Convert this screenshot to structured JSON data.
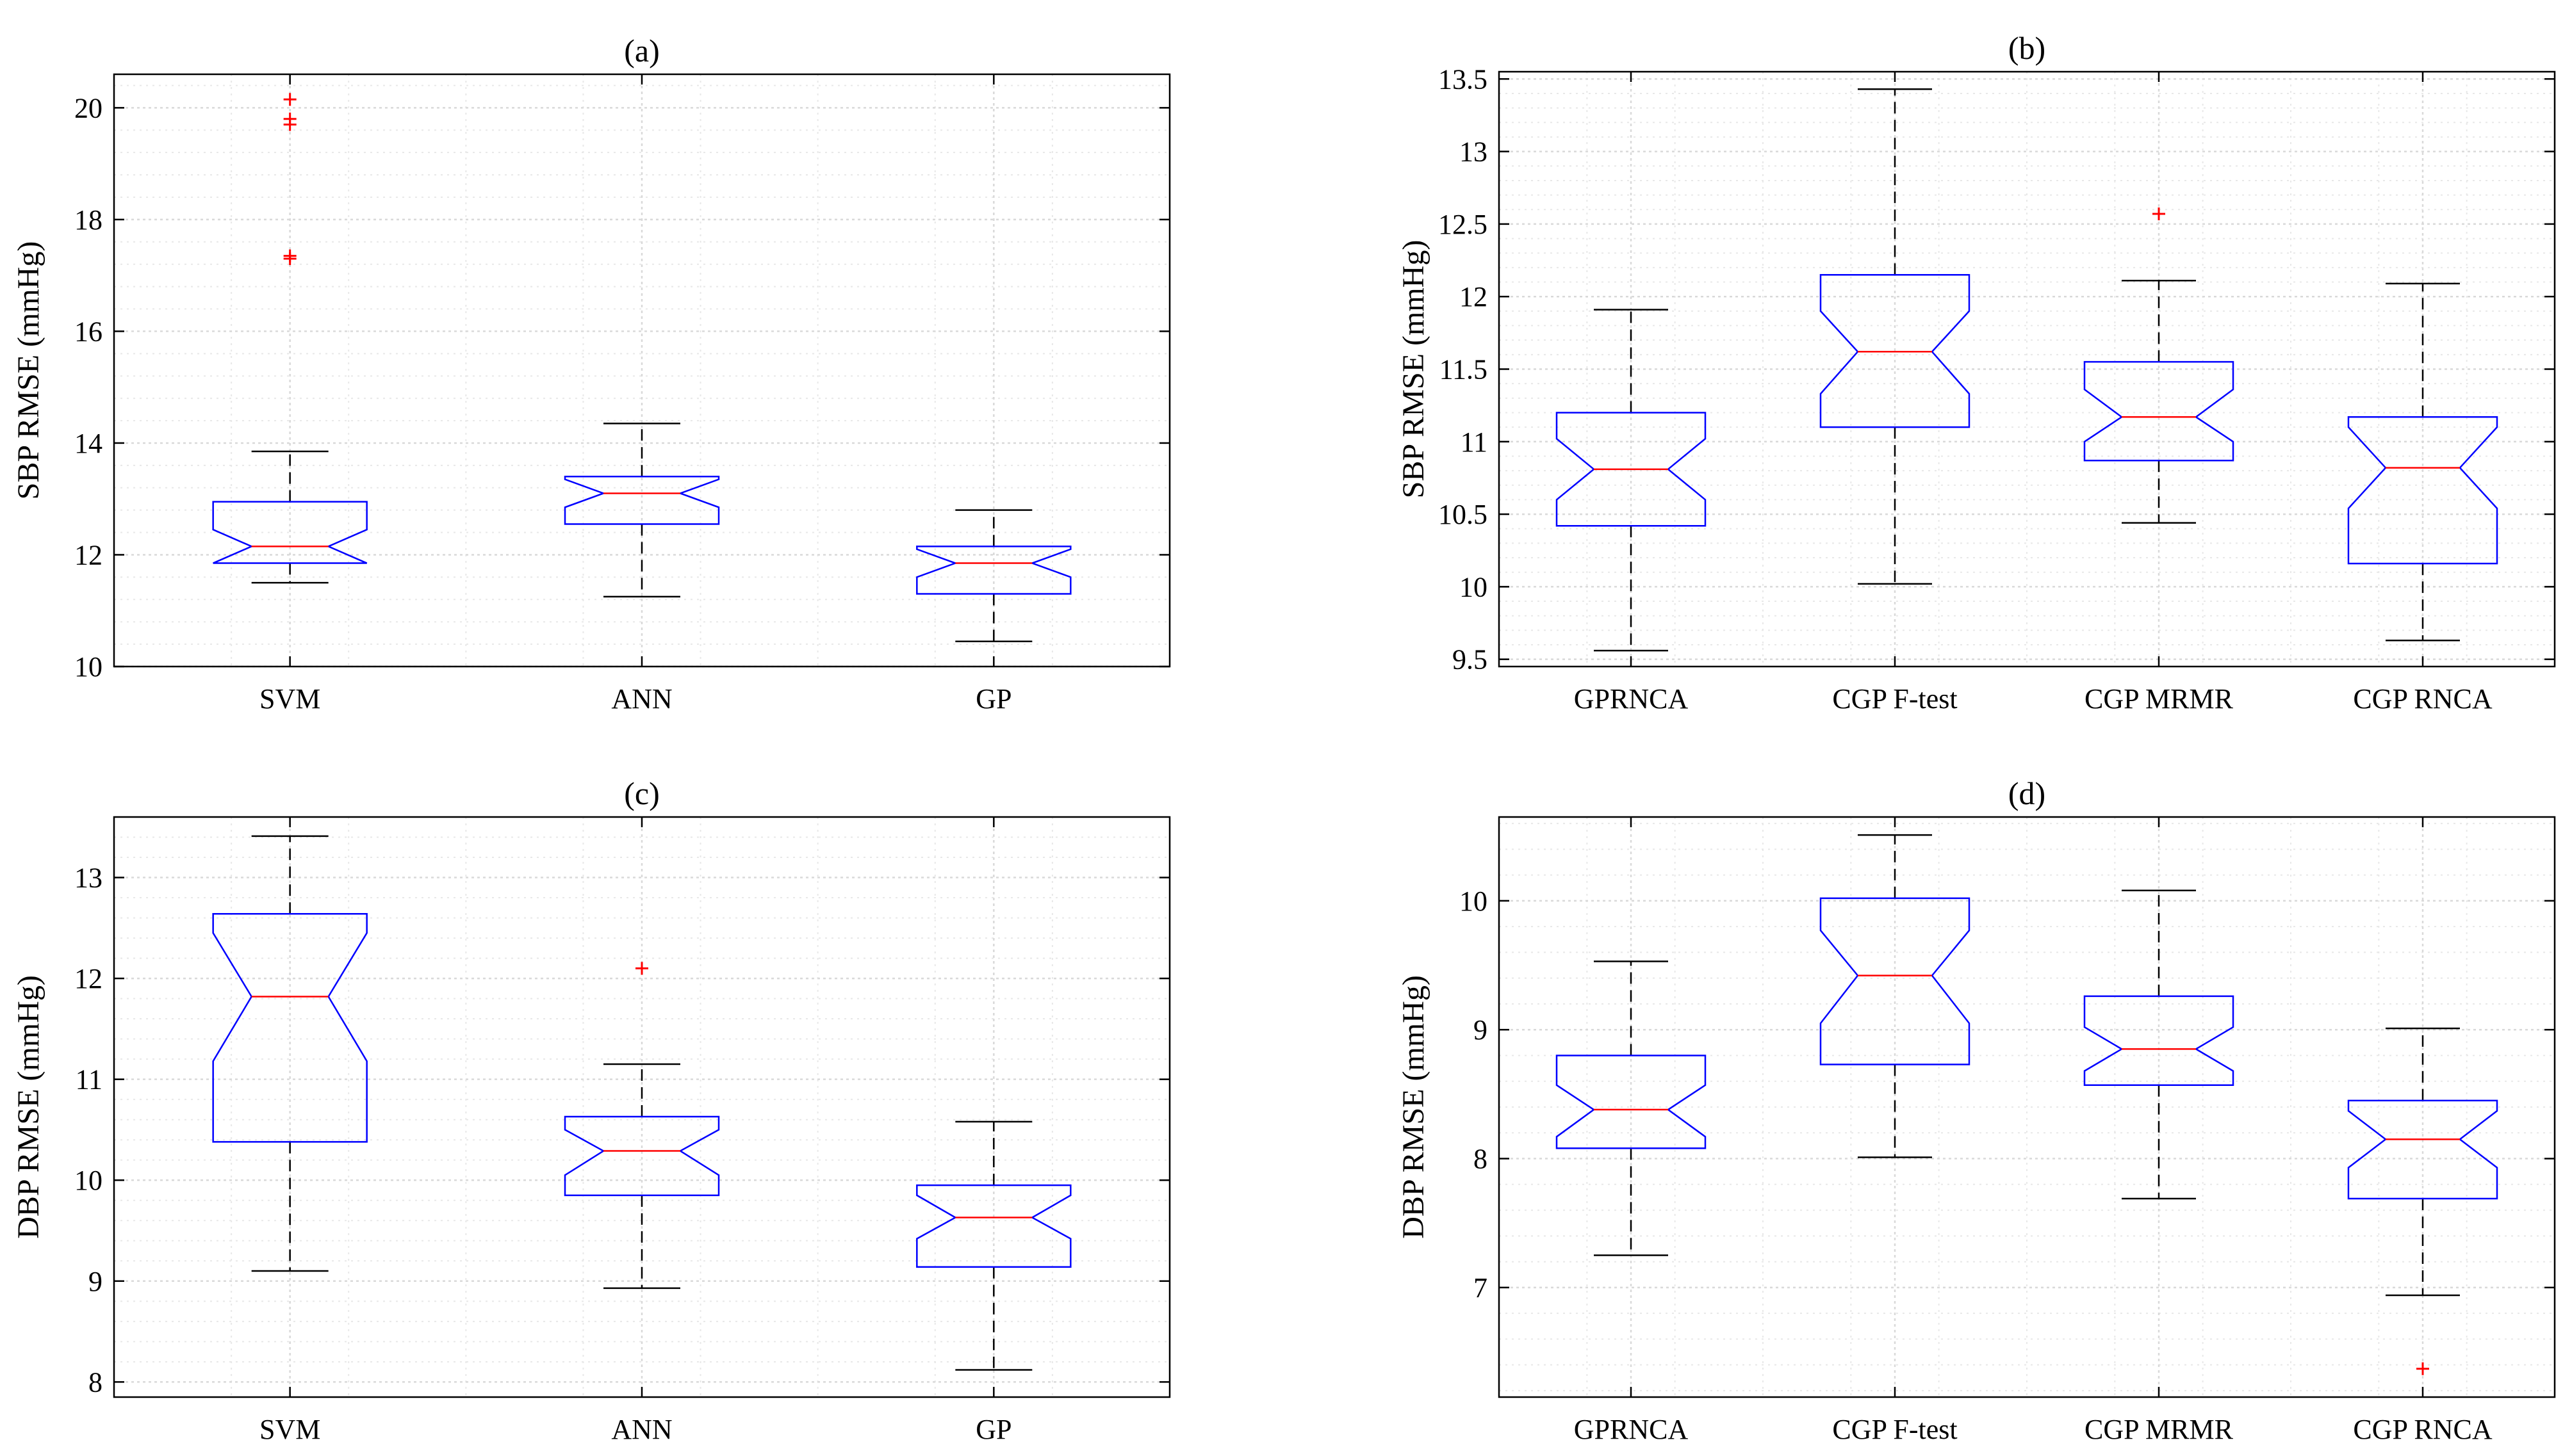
{
  "figure": {
    "colors": {
      "box": "#0000ff",
      "median": "#ff0000",
      "outlier": "#ff0000",
      "whisker": "#000000",
      "grid_major": "#d9d9d9",
      "grid_minor": "#e8e8e8",
      "axis": "#000000"
    }
  },
  "chart_data": [
    {
      "type": "boxplot",
      "title": "(a)",
      "xlabel": "",
      "ylabel": "SBP RMSE (mmHg)",
      "ylim": [
        10,
        20.6
      ],
      "yticks": [
        10,
        12,
        14,
        16,
        18,
        20
      ],
      "ytick_labels": [
        "10",
        "12",
        "14",
        "16",
        "18",
        "20"
      ],
      "minor_step": 0.4,
      "notched": true,
      "categories": [
        "SVM",
        "ANN",
        "GP"
      ],
      "boxes": [
        {
          "whisker_low": 11.5,
          "q1": 11.85,
          "median": 12.15,
          "q3": 12.95,
          "whisker_high": 13.85,
          "notch_low": 11.85,
          "notch_high": 12.45,
          "outliers": [
            17.3,
            17.35,
            19.7,
            19.8,
            20.15
          ]
        },
        {
          "whisker_low": 11.25,
          "q1": 12.55,
          "median": 13.1,
          "q3": 13.4,
          "whisker_high": 14.35,
          "notch_low": 12.85,
          "notch_high": 13.35,
          "outliers": []
        },
        {
          "whisker_low": 10.45,
          "q1": 11.3,
          "median": 11.85,
          "q3": 12.15,
          "whisker_high": 12.8,
          "notch_low": 11.6,
          "notch_high": 12.1,
          "outliers": []
        }
      ]
    },
    {
      "type": "boxplot",
      "title": "(b)",
      "xlabel": "",
      "ylabel": "SBP RMSE (mmHg)",
      "ylim": [
        9.45,
        13.55
      ],
      "yticks": [
        9.5,
        10,
        10.5,
        11,
        11.5,
        12,
        12.5,
        13,
        13.5
      ],
      "ytick_labels": [
        "9.5",
        "10",
        "10.5",
        "11",
        "11.5",
        "12",
        "12.5",
        "13",
        "13.5"
      ],
      "minor_step": 0.1,
      "notched": true,
      "categories": [
        "GPRNCA",
        "CGP F-test",
        "CGP MRMR",
        "CGP RNCA"
      ],
      "boxes": [
        {
          "whisker_low": 9.56,
          "q1": 10.42,
          "median": 10.81,
          "q3": 11.2,
          "whisker_high": 11.91,
          "notch_low": 10.6,
          "notch_high": 11.02,
          "outliers": []
        },
        {
          "whisker_low": 10.02,
          "q1": 11.1,
          "median": 11.62,
          "q3": 12.15,
          "whisker_high": 13.43,
          "notch_low": 11.33,
          "notch_high": 11.9,
          "outliers": []
        },
        {
          "whisker_low": 10.44,
          "q1": 10.87,
          "median": 11.17,
          "q3": 11.55,
          "whisker_high": 12.11,
          "notch_low": 11.0,
          "notch_high": 11.36,
          "outliers": [
            12.57
          ]
        },
        {
          "whisker_low": 9.63,
          "q1": 10.16,
          "median": 10.82,
          "q3": 11.17,
          "whisker_high": 12.09,
          "notch_low": 10.54,
          "notch_high": 11.1,
          "outliers": []
        }
      ]
    },
    {
      "type": "boxplot",
      "title": "(c)",
      "xlabel": "",
      "ylabel": "DBP RMSE (mmHg)",
      "ylim": [
        7.85,
        13.6
      ],
      "yticks": [
        8,
        9,
        10,
        11,
        12,
        13
      ],
      "ytick_labels": [
        "8",
        "9",
        "10",
        "11",
        "12",
        "13"
      ],
      "minor_step": 0.2,
      "notched": true,
      "categories": [
        "SVM",
        "ANN",
        "GP"
      ],
      "boxes": [
        {
          "whisker_low": 9.1,
          "q1": 10.38,
          "median": 11.82,
          "q3": 12.64,
          "whisker_high": 13.41,
          "notch_low": 11.18,
          "notch_high": 12.45,
          "outliers": []
        },
        {
          "whisker_low": 8.93,
          "q1": 9.85,
          "median": 10.29,
          "q3": 10.63,
          "whisker_high": 11.15,
          "notch_low": 10.05,
          "notch_high": 10.5,
          "outliers": [
            12.1
          ]
        },
        {
          "whisker_low": 8.12,
          "q1": 9.14,
          "median": 9.63,
          "q3": 9.95,
          "whisker_high": 10.58,
          "notch_low": 9.42,
          "notch_high": 9.85,
          "outliers": []
        }
      ]
    },
    {
      "type": "boxplot",
      "title": "(d)",
      "xlabel": "",
      "ylabel": "DBP RMSE (mmHg)",
      "ylim": [
        6.15,
        10.65
      ],
      "yticks": [
        7,
        8,
        9,
        10
      ],
      "ytick_labels": [
        "7",
        "8",
        "9",
        "10"
      ],
      "minor_step": 0.2,
      "notched": true,
      "categories": [
        "GPRNCA",
        "CGP F-test",
        "CGP MRMR",
        "CGP RNCA"
      ],
      "boxes": [
        {
          "whisker_low": 7.25,
          "q1": 8.08,
          "median": 8.38,
          "q3": 8.8,
          "whisker_high": 9.53,
          "notch_low": 8.17,
          "notch_high": 8.57,
          "outliers": []
        },
        {
          "whisker_low": 8.01,
          "q1": 8.73,
          "median": 9.42,
          "q3": 10.02,
          "whisker_high": 10.51,
          "notch_low": 9.05,
          "notch_high": 9.77,
          "outliers": []
        },
        {
          "whisker_low": 7.69,
          "q1": 8.57,
          "median": 8.85,
          "q3": 9.26,
          "whisker_high": 10.08,
          "notch_low": 8.68,
          "notch_high": 9.02,
          "outliers": []
        },
        {
          "whisker_low": 6.94,
          "q1": 7.69,
          "median": 8.15,
          "q3": 8.45,
          "whisker_high": 9.01,
          "notch_low": 7.93,
          "notch_high": 8.37,
          "outliers": [
            6.37
          ]
        }
      ]
    }
  ]
}
